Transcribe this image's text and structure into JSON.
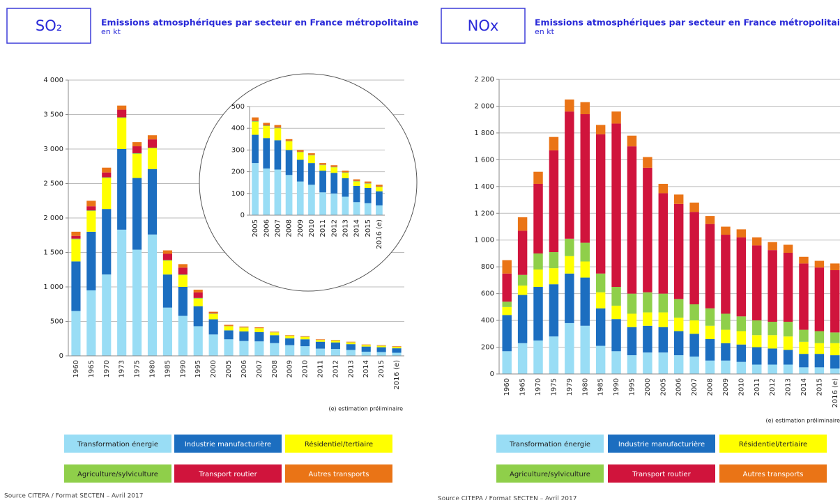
{
  "chart_data": [
    {
      "type": "bar",
      "stacked": true,
      "label": "SO₂",
      "title": "Emissions atmosphériques par secteur en France métropolitaine",
      "subtitle": "en kt",
      "note": "(e) estimation préliminaire",
      "source": "Source CITEPA / Format SECTEN – Avril 2017",
      "categories": [
        "1960",
        "1965",
        "1970",
        "1973",
        "1975",
        "1980",
        "1985",
        "1990",
        "1995",
        "2000",
        "2005",
        "2006",
        "2007",
        "2008",
        "2009",
        "2010",
        "2011",
        "2012",
        "2013",
        "2014",
        "2015",
        "2016 (e)"
      ],
      "series": [
        {
          "name": "Transformation énergie",
          "color": "#99ddf5",
          "values": [
            650,
            950,
            1180,
            1830,
            1540,
            1760,
            700,
            580,
            430,
            310,
            240,
            215,
            210,
            185,
            155,
            140,
            105,
            100,
            85,
            60,
            55,
            45
          ]
        },
        {
          "name": "Industrie manufacturière",
          "color": "#1c6ec0",
          "values": [
            720,
            850,
            950,
            1170,
            1040,
            950,
            480,
            420,
            290,
            220,
            130,
            140,
            135,
            115,
            100,
            100,
            100,
            95,
            85,
            75,
            70,
            65
          ]
        },
        {
          "name": "Résidentiel/tertiaire",
          "color": "#ffff00",
          "values": [
            320,
            300,
            450,
            450,
            350,
            300,
            200,
            170,
            110,
            80,
            60,
            55,
            55,
            40,
            35,
            35,
            25,
            25,
            25,
            20,
            20,
            20
          ]
        },
        {
          "name": "Agriculture/sylviculture",
          "color": "#8fcf4a",
          "values": [
            10,
            10,
            10,
            10,
            10,
            10,
            10,
            10,
            10,
            5,
            3,
            3,
            3,
            2,
            2,
            2,
            2,
            2,
            2,
            2,
            2,
            2
          ]
        },
        {
          "name": "Transport routier",
          "color": "#d0143c",
          "values": [
            40,
            60,
            70,
            110,
            100,
            120,
            90,
            100,
            80,
            10,
            2,
            2,
            2,
            1,
            1,
            1,
            1,
            1,
            1,
            1,
            1,
            1
          ]
        },
        {
          "name": "Autres transports",
          "color": "#ea7416",
          "values": [
            60,
            80,
            70,
            60,
            60,
            60,
            50,
            50,
            40,
            15,
            15,
            10,
            10,
            7,
            7,
            7,
            7,
            7,
            7,
            7,
            7,
            7
          ]
        }
      ],
      "ylim": [
        0,
        4000
      ],
      "yticks": [
        0,
        500,
        {
          "value": 1000,
          "label": "1 000"
        },
        {
          "value": 1500,
          "label": "1 500"
        },
        {
          "value": 2000,
          "label": "2 000"
        },
        {
          "value": 2500,
          "label": "2 500"
        },
        {
          "value": 3000,
          "label": "3 000"
        },
        {
          "value": 3500,
          "label": "3 500"
        },
        {
          "value": 4000,
          "label": "4 000"
        }
      ],
      "grid": true
    },
    {
      "type": "bar",
      "stacked": true,
      "categories": [
        "2005",
        "2006",
        "2007",
        "2008",
        "2009",
        "2010",
        "2011",
        "2012",
        "2013",
        "2014",
        "2015",
        "2016 (e)"
      ],
      "series": [
        {
          "color": "#99ddf5",
          "values": [
            240,
            215,
            210,
            185,
            155,
            140,
            105,
            100,
            85,
            60,
            55,
            45
          ]
        },
        {
          "color": "#1c6ec0",
          "values": [
            130,
            140,
            135,
            115,
            100,
            100,
            100,
            95,
            85,
            75,
            70,
            65
          ]
        },
        {
          "color": "#ffff00",
          "values": [
            60,
            55,
            55,
            40,
            35,
            35,
            25,
            25,
            25,
            20,
            20,
            20
          ]
        },
        {
          "color": "#8fcf4a",
          "values": [
            3,
            3,
            3,
            2,
            2,
            2,
            2,
            2,
            2,
            2,
            2,
            2
          ]
        },
        {
          "color": "#d0143c",
          "values": [
            2,
            2,
            2,
            1,
            1,
            1,
            1,
            1,
            1,
            1,
            1,
            1
          ]
        },
        {
          "color": "#ea7416",
          "values": [
            15,
            10,
            10,
            7,
            7,
            7,
            7,
            7,
            7,
            7,
            7,
            7
          ]
        }
      ],
      "ylim": [
        0,
        500
      ],
      "yticks": [
        0,
        100,
        200,
        300,
        400,
        500
      ],
      "grid": true
    },
    {
      "type": "bar",
      "stacked": true,
      "label": "NOx",
      "title": "Emissions atmosphériques par secteur en France métropolitaine",
      "subtitle": "en kt",
      "note": "(e) estimation préliminaire",
      "source": "Source CITEPA / Format SECTEN – Avril 2017",
      "categories": [
        "1960",
        "1965",
        "1970",
        "1975",
        "1979",
        "1980",
        "1985",
        "1990",
        "1995",
        "2000",
        "2005",
        "2006",
        "2007",
        "2008",
        "2009",
        "2010",
        "2011",
        "2012",
        "2013",
        "2014",
        "2015",
        "2016 (e)"
      ],
      "series": [
        {
          "name": "Transformation énergie",
          "color": "#99ddf5",
          "values": [
            170,
            230,
            250,
            280,
            380,
            360,
            210,
            170,
            140,
            160,
            160,
            140,
            130,
            100,
            100,
            90,
            70,
            70,
            70,
            50,
            50,
            40
          ]
        },
        {
          "name": "Industrie manufacturière",
          "color": "#1c6ec0",
          "values": [
            270,
            360,
            400,
            390,
            370,
            360,
            280,
            240,
            210,
            200,
            190,
            180,
            170,
            160,
            130,
            130,
            130,
            120,
            110,
            100,
            100,
            100
          ]
        },
        {
          "name": "Résidentiel/tertiaire",
          "color": "#ffff00",
          "values": [
            60,
            70,
            130,
            120,
            130,
            120,
            120,
            100,
            100,
            100,
            110,
            100,
            100,
            100,
            100,
            100,
            90,
            100,
            100,
            90,
            80,
            90
          ]
        },
        {
          "name": "Agriculture/sylviculture",
          "color": "#8fcf4a",
          "values": [
            40,
            80,
            120,
            120,
            130,
            140,
            140,
            140,
            150,
            150,
            140,
            140,
            120,
            130,
            120,
            110,
            110,
            100,
            110,
            90,
            90,
            80
          ]
        },
        {
          "name": "Transport routier",
          "color": "#d0143c",
          "values": [
            210,
            330,
            520,
            760,
            950,
            960,
            1040,
            1220,
            1100,
            930,
            750,
            710,
            690,
            630,
            590,
            590,
            560,
            535,
            515,
            495,
            475,
            465
          ]
        },
        {
          "name": "Autres transports",
          "color": "#ea7416",
          "values": [
            100,
            100,
            90,
            100,
            90,
            90,
            70,
            90,
            80,
            80,
            70,
            70,
            70,
            60,
            60,
            60,
            60,
            60,
            60,
            50,
            50,
            50
          ]
        }
      ],
      "ylim": [
        0,
        2200
      ],
      "yticks": [
        0,
        200,
        400,
        600,
        800,
        {
          "value": 1000,
          "label": "1 000"
        },
        {
          "value": 1200,
          "label": "1 200"
        },
        {
          "value": 1400,
          "label": "1 400"
        },
        {
          "value": 1600,
          "label": "1 600"
        },
        {
          "value": 1800,
          "label": "1 800"
        },
        {
          "value": 2000,
          "label": "2 000"
        },
        {
          "value": 2200,
          "label": "2 200"
        }
      ],
      "grid": true
    }
  ]
}
